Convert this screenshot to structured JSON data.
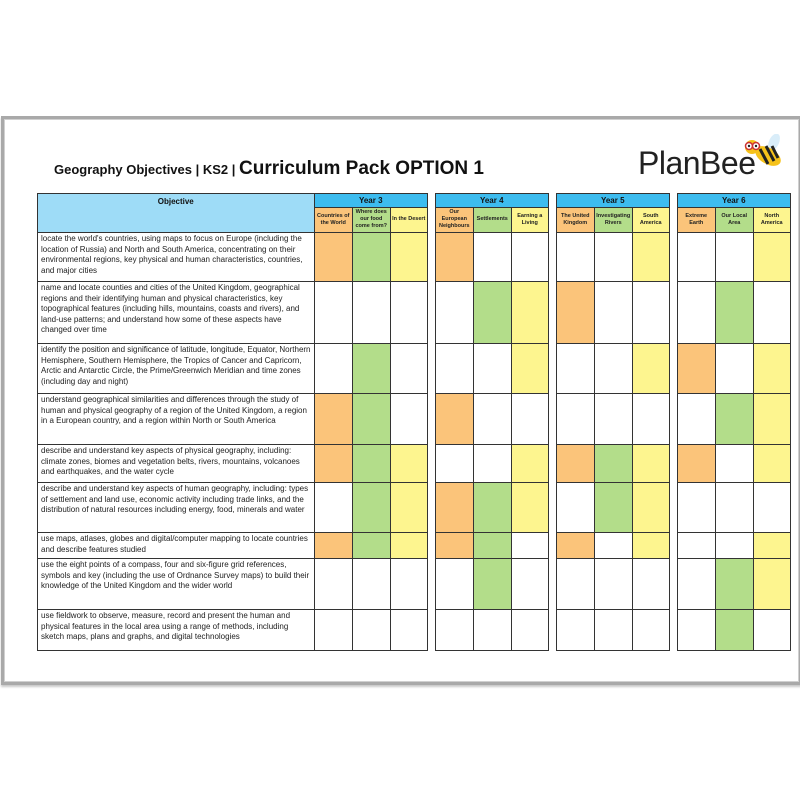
{
  "title": {
    "prefix": "Geography Objectives | KS2 | ",
    "main": "Curriculum Pack OPTION 1"
  },
  "logo": {
    "text": "PlanBee",
    "icon": "bee-icon"
  },
  "colors": {
    "orange": "#fbc47a",
    "green": "#b3dd8a",
    "yellow": "#fdf58f",
    "year_header": "#3dbcef",
    "objective_header": "#9edcf7"
  },
  "table": {
    "objective_header": "Objective",
    "years": [
      {
        "label": "Year 3",
        "units": [
          {
            "label": "Countries of the World",
            "color": "O"
          },
          {
            "label": "Where does our food come from?",
            "color": "G"
          },
          {
            "label": "In the Desert",
            "color": "Y"
          }
        ]
      },
      {
        "label": "Year 4",
        "units": [
          {
            "label": "Our European Neighbours",
            "color": "O"
          },
          {
            "label": "Settlements",
            "color": "G"
          },
          {
            "label": "Earning a Living",
            "color": "Y"
          }
        ]
      },
      {
        "label": "Year 5",
        "units": [
          {
            "label": "The United Kingdom",
            "color": "O"
          },
          {
            "label": "Investigating Rivers",
            "color": "G"
          },
          {
            "label": "South America",
            "color": "Y"
          }
        ]
      },
      {
        "label": "Year 6",
        "units": [
          {
            "label": "Extreme Earth",
            "color": "O"
          },
          {
            "label": "Our Local Area",
            "color": "G"
          },
          {
            "label": "North America",
            "color": "Y"
          }
        ]
      }
    ],
    "rows": [
      {
        "objective": "locate the world's countries, using maps to focus on Europe (including the location of Russia) and North and South America, concentrating on their environmental regions, key physical and human characteristics, countries, and major cities",
        "marks": "OGY|O--|--Y|--Y"
      },
      {
        "objective": "name and locate counties and cities of the United Kingdom, geographical regions and their identifying human and physical characteristics, key topographical features (including hills, mountains, coasts and rivers), and land-use patterns; and understand how some of these aspects have changed over time",
        "marks": "---|-GY|O--|-G-"
      },
      {
        "objective": "identify the position and significance of latitude, longitude, Equator, Northern Hemisphere, Southern Hemisphere, the Tropics of Cancer and Capricorn, Arctic and Antarctic Circle, the Prime/Greenwich Meridian and time zones (including day and night)",
        "marks": "-G-|--Y|--Y|O-Y"
      },
      {
        "objective": "understand geographical similarities and differences through the study of human and physical geography of a region of the United Kingdom, a region in a European country, and a region within North or South America",
        "marks": "OG-|O--|---|-GY"
      },
      {
        "objective": "describe and understand key aspects of physical geography, including: climate zones, biomes and vegetation belts, rivers, mountains, volcanoes and earthquakes, and the water cycle",
        "marks": "OGY|--Y|OGY|O-Y"
      },
      {
        "objective": "describe and understand key aspects of human geography, including: types of settlement and land use, economic activity including trade links, and the distribution of natural resources including energy, food, minerals and water",
        "marks": "-GY|OGY|-GY|---"
      },
      {
        "objective": "use maps, atlases, globes and digital/computer mapping to locate countries and describe features studied",
        "marks": "OGY|OG-|O-Y|--Y"
      },
      {
        "objective": "use the eight points of a compass, four and six-figure grid references, symbols and key (including the use of Ordnance Survey maps) to build their knowledge of the United Kingdom and the wider world",
        "marks": "---|-G-|---|-GY"
      },
      {
        "objective": "use fieldwork to observe, measure, record and present the human and physical features in the local area using a range of methods, including sketch maps, plans and graphs, and digital technologies",
        "marks": "---|---|---|-G-"
      }
    ]
  }
}
